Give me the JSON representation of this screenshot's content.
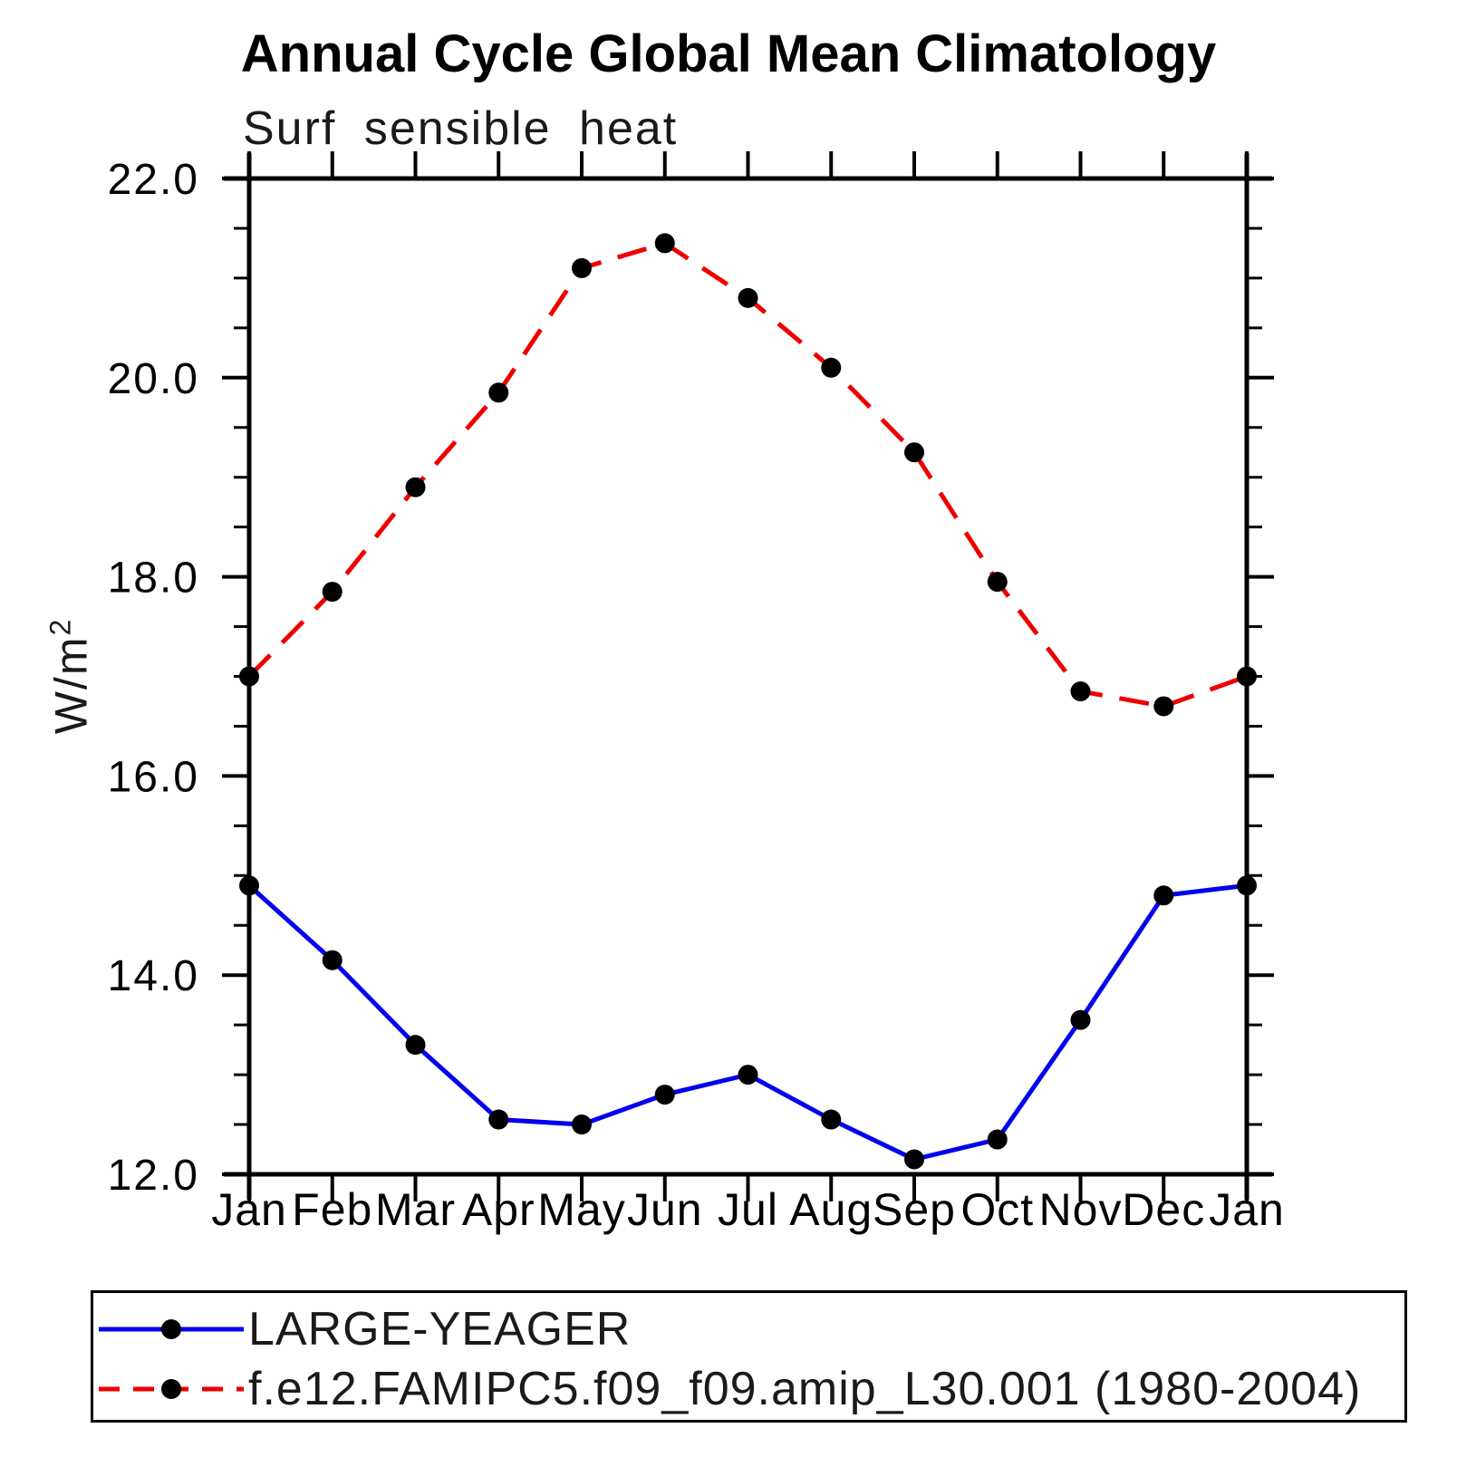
{
  "title": "Annual Cycle Global Mean Climatology",
  "subtitle": "Surf sensible heat",
  "ylabel_base": "W/m",
  "ylabel_exp": "2",
  "chart_data": {
    "type": "line",
    "title": "Annual Cycle Global Mean Climatology",
    "subtitle": "Surf sensible heat",
    "ylabel": "W/m2",
    "xlabel": "",
    "categories": [
      "Jan",
      "Feb",
      "Mar",
      "Apr",
      "May",
      "Jun",
      "Jul",
      "Aug",
      "Sep",
      "Oct",
      "Nov",
      "Dec",
      "Jan"
    ],
    "series": [
      {
        "name": "LARGE-YEAGER",
        "color": "#0000ee",
        "line_style": "solid",
        "marker": "circle",
        "marker_color": "#000000",
        "values": [
          14.9,
          14.15,
          13.3,
          12.55,
          12.5,
          12.8,
          13.0,
          12.55,
          12.15,
          12.35,
          13.55,
          14.8,
          14.9
        ]
      },
      {
        "name": "f.e12.FAMIPC5.f09_f09.amip_L30.001 (1980-2004)",
        "color": "#ee0000",
        "line_style": "dashed",
        "marker": "circle",
        "marker_color": "#000000",
        "values": [
          17.0,
          17.85,
          18.9,
          19.85,
          21.1,
          21.35,
          20.8,
          20.1,
          19.25,
          17.95,
          16.85,
          16.7,
          17.0
        ]
      }
    ],
    "ylim": [
      12.0,
      22.0
    ],
    "ytick_major": [
      12.0,
      14.0,
      16.0,
      18.0,
      20.0,
      22.0
    ],
    "ytick_labels": [
      "12.0",
      "14.0",
      "16.0",
      "18.0",
      "20.0",
      "22.0"
    ],
    "ytick_minor_step": 0.5,
    "grid": false,
    "legend_position": "bottom-left"
  }
}
